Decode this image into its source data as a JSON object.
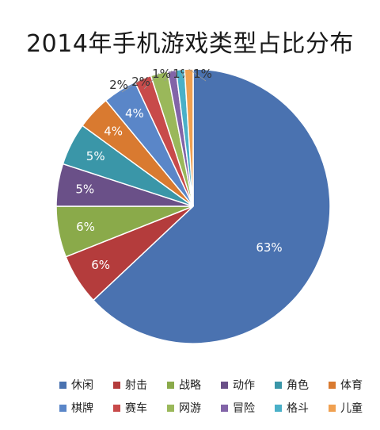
{
  "chart_data": {
    "type": "pie",
    "title": "2014年手机游戏类型占比分布",
    "slices": [
      {
        "name": "休闲",
        "value": 63,
        "label": "63%",
        "color": "#4a72b0"
      },
      {
        "name": "射击",
        "value": 6,
        "label": "6%",
        "color": "#b43c3c"
      },
      {
        "name": "战略",
        "value": 6,
        "label": "6%",
        "color": "#8aaa4a"
      },
      {
        "name": "动作",
        "value": 5,
        "label": "5%",
        "color": "#6a5088"
      },
      {
        "name": "角色",
        "value": 5,
        "label": "5%",
        "color": "#3a96a8"
      },
      {
        "name": "体育",
        "value": 4,
        "label": "4%",
        "color": "#d97a30"
      },
      {
        "name": "棋牌",
        "value": 4,
        "label": "4%",
        "color": "#5a86c8"
      },
      {
        "name": "赛车",
        "value": 2,
        "label": "2%",
        "color": "#c84a4a"
      },
      {
        "name": "网游",
        "value": 2,
        "label": "2%",
        "color": "#9ab85a"
      },
      {
        "name": "冒险",
        "value": 1,
        "label": "1%",
        "color": "#8264a8"
      },
      {
        "name": "格斗",
        "value": 1,
        "label": "1%",
        "color": "#4ab0c8"
      },
      {
        "name": "儿童",
        "value": 1,
        "label": "1%",
        "color": "#f0a050"
      }
    ],
    "legend_position": "bottom"
  }
}
